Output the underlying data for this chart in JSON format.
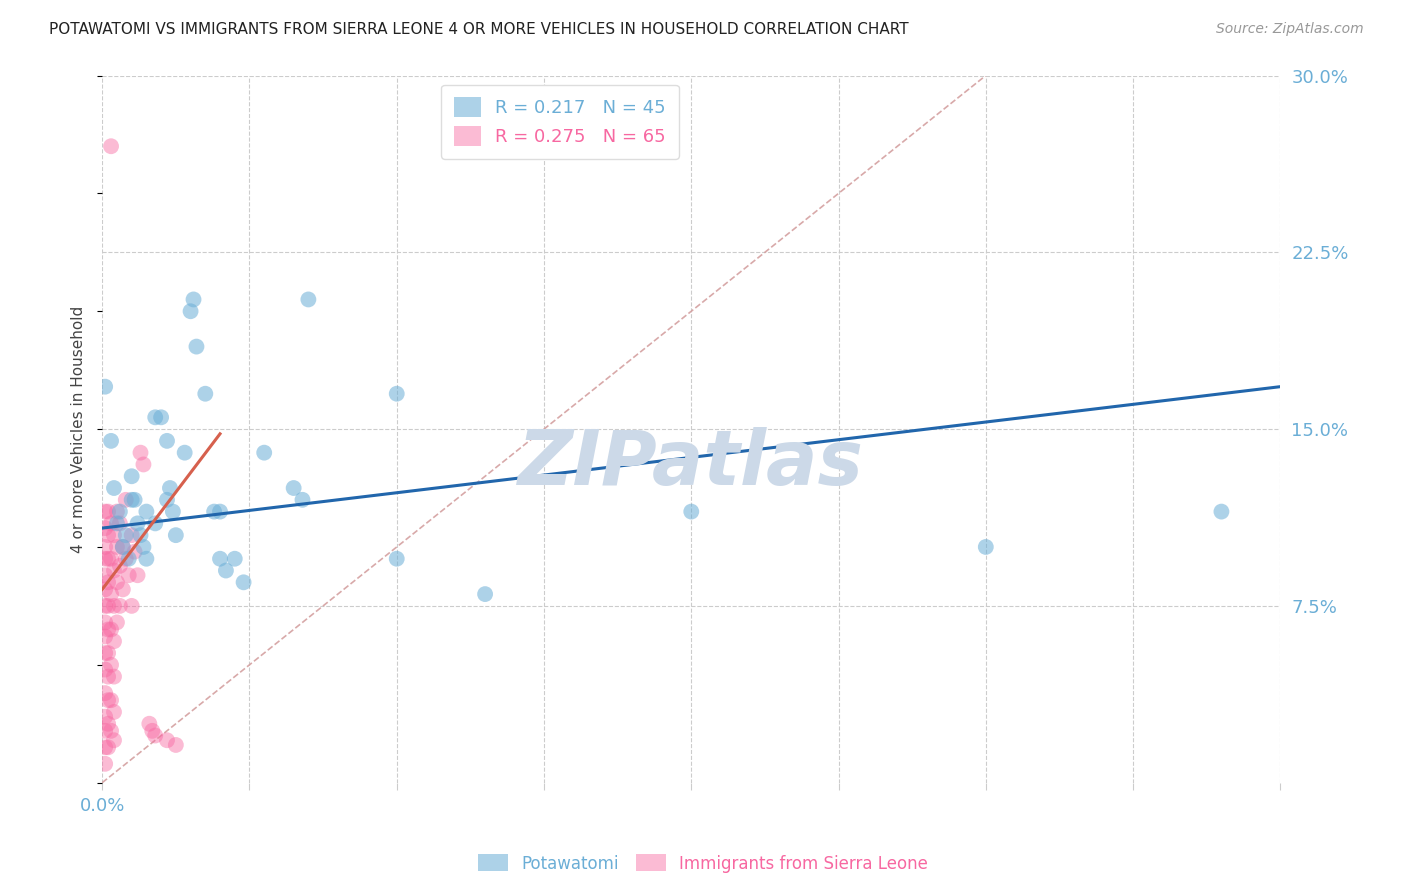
{
  "title": "POTAWATOMI VS IMMIGRANTS FROM SIERRA LEONE 4 OR MORE VEHICLES IN HOUSEHOLD CORRELATION CHART",
  "source": "Source: ZipAtlas.com",
  "ylabel": "4 or more Vehicles in Household",
  "xlim": [
    0.0,
    0.4
  ],
  "ylim": [
    0.0,
    0.3
  ],
  "xticks": [
    0.0,
    0.05,
    0.1,
    0.15,
    0.2,
    0.25,
    0.3,
    0.35,
    0.4
  ],
  "xticklabels_shown": {
    "0.0": "0.0%"
  },
  "yticks_right": [
    0.075,
    0.15,
    0.225,
    0.3
  ],
  "yticklabels_right": [
    "7.5%",
    "15.0%",
    "22.5%",
    "30.0%"
  ],
  "legend_R_blue": "R = 0.217",
  "legend_N_blue": "N = 45",
  "legend_R_pink": "R = 0.275",
  "legend_N_pink": "N = 65",
  "blue_line": {
    "x0": 0.0,
    "y0": 0.108,
    "x1": 0.4,
    "y1": 0.168
  },
  "pink_line": {
    "x0": 0.0,
    "y0": 0.082,
    "x1": 0.04,
    "y1": 0.148
  },
  "diagonal_line": {
    "x0": 0.0,
    "y0": 0.0,
    "x1": 0.3,
    "y1": 0.3
  },
  "blue_scatter": [
    [
      0.001,
      0.168
    ],
    [
      0.003,
      0.145
    ],
    [
      0.004,
      0.125
    ],
    [
      0.005,
      0.11
    ],
    [
      0.006,
      0.115
    ],
    [
      0.007,
      0.1
    ],
    [
      0.008,
      0.105
    ],
    [
      0.009,
      0.095
    ],
    [
      0.01,
      0.12
    ],
    [
      0.01,
      0.13
    ],
    [
      0.011,
      0.12
    ],
    [
      0.012,
      0.11
    ],
    [
      0.013,
      0.105
    ],
    [
      0.014,
      0.1
    ],
    [
      0.015,
      0.115
    ],
    [
      0.015,
      0.095
    ],
    [
      0.018,
      0.11
    ],
    [
      0.018,
      0.155
    ],
    [
      0.02,
      0.155
    ],
    [
      0.022,
      0.145
    ],
    [
      0.022,
      0.12
    ],
    [
      0.023,
      0.125
    ],
    [
      0.024,
      0.115
    ],
    [
      0.025,
      0.105
    ],
    [
      0.028,
      0.14
    ],
    [
      0.03,
      0.2
    ],
    [
      0.031,
      0.205
    ],
    [
      0.032,
      0.185
    ],
    [
      0.035,
      0.165
    ],
    [
      0.038,
      0.115
    ],
    [
      0.04,
      0.115
    ],
    [
      0.04,
      0.095
    ],
    [
      0.042,
      0.09
    ],
    [
      0.045,
      0.095
    ],
    [
      0.048,
      0.085
    ],
    [
      0.055,
      0.14
    ],
    [
      0.065,
      0.125
    ],
    [
      0.068,
      0.12
    ],
    [
      0.07,
      0.205
    ],
    [
      0.1,
      0.165
    ],
    [
      0.1,
      0.095
    ],
    [
      0.13,
      0.08
    ],
    [
      0.2,
      0.115
    ],
    [
      0.3,
      0.1
    ],
    [
      0.38,
      0.115
    ]
  ],
  "pink_scatter": [
    [
      0.001,
      0.115
    ],
    [
      0.001,
      0.108
    ],
    [
      0.001,
      0.1
    ],
    [
      0.001,
      0.095
    ],
    [
      0.001,
      0.088
    ],
    [
      0.001,
      0.082
    ],
    [
      0.001,
      0.075
    ],
    [
      0.001,
      0.068
    ],
    [
      0.001,
      0.062
    ],
    [
      0.001,
      0.055
    ],
    [
      0.001,
      0.048
    ],
    [
      0.001,
      0.038
    ],
    [
      0.001,
      0.028
    ],
    [
      0.001,
      0.022
    ],
    [
      0.001,
      0.015
    ],
    [
      0.001,
      0.008
    ],
    [
      0.002,
      0.115
    ],
    [
      0.002,
      0.105
    ],
    [
      0.002,
      0.095
    ],
    [
      0.002,
      0.085
    ],
    [
      0.002,
      0.075
    ],
    [
      0.002,
      0.065
    ],
    [
      0.002,
      0.055
    ],
    [
      0.002,
      0.045
    ],
    [
      0.002,
      0.035
    ],
    [
      0.002,
      0.025
    ],
    [
      0.002,
      0.015
    ],
    [
      0.003,
      0.27
    ],
    [
      0.003,
      0.11
    ],
    [
      0.003,
      0.095
    ],
    [
      0.003,
      0.08
    ],
    [
      0.003,
      0.065
    ],
    [
      0.003,
      0.05
    ],
    [
      0.003,
      0.035
    ],
    [
      0.003,
      0.022
    ],
    [
      0.004,
      0.105
    ],
    [
      0.004,
      0.09
    ],
    [
      0.004,
      0.075
    ],
    [
      0.004,
      0.06
    ],
    [
      0.004,
      0.045
    ],
    [
      0.004,
      0.03
    ],
    [
      0.004,
      0.018
    ],
    [
      0.005,
      0.115
    ],
    [
      0.005,
      0.1
    ],
    [
      0.005,
      0.085
    ],
    [
      0.005,
      0.068
    ],
    [
      0.006,
      0.11
    ],
    [
      0.006,
      0.092
    ],
    [
      0.006,
      0.075
    ],
    [
      0.007,
      0.1
    ],
    [
      0.007,
      0.082
    ],
    [
      0.008,
      0.12
    ],
    [
      0.008,
      0.095
    ],
    [
      0.009,
      0.088
    ],
    [
      0.01,
      0.105
    ],
    [
      0.01,
      0.075
    ],
    [
      0.011,
      0.098
    ],
    [
      0.012,
      0.088
    ],
    [
      0.013,
      0.14
    ],
    [
      0.014,
      0.135
    ],
    [
      0.016,
      0.025
    ],
    [
      0.017,
      0.022
    ],
    [
      0.018,
      0.02
    ],
    [
      0.022,
      0.018
    ],
    [
      0.025,
      0.016
    ]
  ],
  "blue_color": "#6baed6",
  "pink_color": "#f768a1",
  "blue_line_color": "#2166ac",
  "pink_line_color": "#d6604d",
  "diagonal_color": "#d4a0a0",
  "watermark_text": "ZIPatlas",
  "watermark_color": "#ccd9e8",
  "background_color": "#ffffff",
  "grid_color": "#cccccc"
}
